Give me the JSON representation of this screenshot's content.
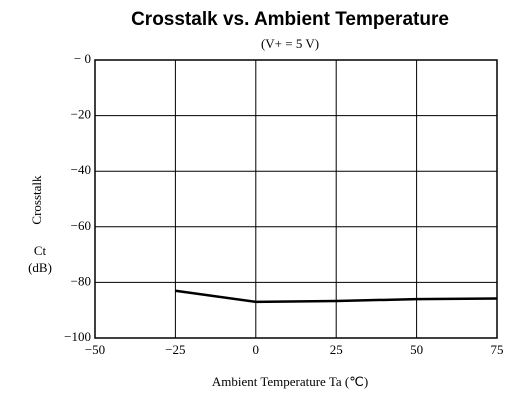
{
  "chart_data": {
    "type": "line",
    "title": "Crosstalk vs. Ambient Temperature",
    "subtitle": "(V+ = 5 V)",
    "x_label": "Ambient Temperature Ta (℃)",
    "y_label": "Crosstalk",
    "y_label_symbol": "Ct",
    "y_label_unit": "(dB)",
    "x": [
      -25,
      0,
      25,
      50,
      75
    ],
    "series": [
      {
        "name": "Crosstalk",
        "color": "#000000",
        "values": [
          -83,
          -87,
          -86.7,
          -86,
          -85.8
        ]
      }
    ],
    "xlim": [
      -50,
      75
    ],
    "xticks": [
      {
        "value": -50,
        "label": "−50"
      },
      {
        "value": -25,
        "label": "−25"
      },
      0,
      25,
      50,
      75
    ],
    "ylim": [
      -100,
      0
    ],
    "yticks": [
      {
        "value": 0,
        "label": "− 0"
      },
      {
        "value": -20,
        "label": "−20"
      },
      {
        "value": -40,
        "label": "−40"
      },
      {
        "value": -60,
        "label": "−60"
      },
      {
        "value": -80,
        "label": "−80"
      },
      {
        "value": -100,
        "label": "−100"
      }
    ],
    "grid": true
  }
}
